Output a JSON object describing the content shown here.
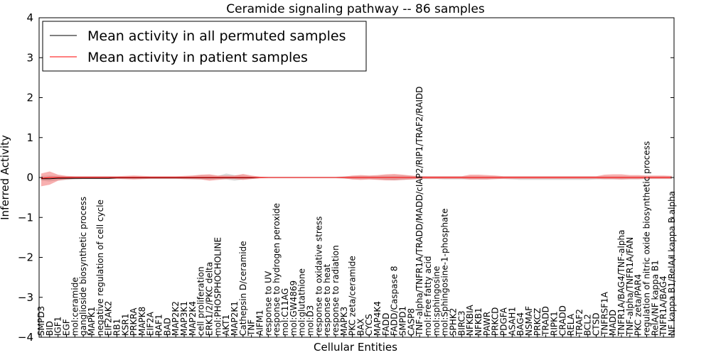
{
  "chart_data": {
    "type": "line",
    "title": "Ceramide signaling pathway -- 86 samples",
    "xlabel": "Cellular Entities",
    "ylabel": "Inferred Activity",
    "ylim": [
      -4,
      4
    ],
    "yticks": [
      "4",
      "3",
      "2",
      "1",
      "0",
      "−1",
      "−2",
      "−3",
      "−4"
    ],
    "grid": false,
    "legend_position": "top-left",
    "categories": [
      "SMPD3",
      "BID",
      "IGF1",
      "EGF",
      "mol:ceramide",
      "ganglioside biosynthetic process",
      "MAPK1",
      "negative regulation of cell cycle",
      "EIF2AK2",
      "RB1",
      "KSR1",
      "PRKRA",
      "MAPK8",
      "EIF2A",
      "RAF1",
      "BAD",
      "MAP2K2",
      "MAP3K1",
      "MAP2K4",
      "cell proliferation",
      "ERK1/2/PKC delta",
      "mol:PHOSPHOCHOLINE",
      "AKT1",
      "MAP2K1",
      "Cathepsin D/ceramide",
      "TNF",
      "AIFM1",
      "response to UV",
      "response to hydrogen peroxide",
      "mol:C11AG",
      "mol:GW4869",
      "mol:glutathione",
      "mol:D3",
      "response to oxidative stress",
      "response to heat",
      "response to radiation",
      "MAPK3",
      "PKC zeta/ceramide",
      "BAX",
      "CYCS",
      "MAP4K4",
      "FADD",
      "FADD/Caspase 8",
      "SMPD1",
      "CASP8",
      "TNF-alpha/TNFR1A/TRADD/MADD/cIAP2/RIP1/TRAF2/RAIDD",
      "mol:Free fatty acid",
      "mol:sphingosine",
      "mol:Sphingosine-1-phosphate",
      "SPHK2",
      "BIRC3",
      "NFKBIA",
      "NFKB1",
      "PAWR",
      "PRKCD",
      "PDGFA",
      "ASAH1",
      "BAG4",
      "NSMAF",
      "PRKCZ",
      "TRADD",
      "RIPK1",
      "CRADD",
      "RELA",
      "TRAF2",
      "BCL2",
      "CTSD",
      "TNFRSF1A",
      "MADD",
      "TNFR1A/BAG4/TNF-alpha",
      "TNF-alpha/TNFR1A/FAN",
      "PKC zeta/PAR4",
      "regulation of nitric oxide biosynthetic process",
      "RelA/NF kappa B1",
      "TNFR1A/BAG4",
      "NF kappa B1/RelA/I kappa B alpha"
    ],
    "series": [
      {
        "name": "Mean activity in all permuted samples",
        "color": "#000000",
        "values": [
          -0.03,
          -0.03,
          -0.02,
          -0.02,
          -0.02,
          -0.02,
          -0.02,
          -0.02,
          -0.02,
          -0.01,
          -0.01,
          -0.01,
          -0.01,
          -0.01,
          -0.01,
          -0.01,
          -0.01,
          -0.01,
          -0.01,
          -0.01,
          -0.01,
          -0.01,
          -0.01,
          -0.01,
          -0.01,
          -0.01,
          0,
          0,
          0,
          0,
          0,
          0,
          0,
          0,
          0,
          0,
          0,
          0,
          0,
          0,
          0,
          0,
          0,
          0,
          0,
          0,
          0,
          0,
          0,
          0,
          0,
          0,
          0,
          0,
          0,
          0,
          0,
          0,
          0,
          0,
          0,
          0,
          0,
          0,
          0,
          0,
          0,
          0,
          0,
          0,
          0,
          0,
          0,
          0,
          0,
          0
        ],
        "band_lower": [
          -0.08,
          -0.1,
          -0.07,
          -0.06,
          -0.05,
          -0.04,
          -0.04,
          -0.04,
          -0.04,
          -0.04,
          -0.04,
          -0.04,
          -0.04,
          -0.04,
          -0.04,
          -0.04,
          -0.04,
          -0.04,
          -0.05,
          -0.05,
          -0.05,
          -0.04,
          -0.05,
          -0.08,
          -0.05,
          -0.03,
          -0.02,
          -0.02,
          -0.02,
          -0.02,
          -0.02,
          -0.02,
          -0.02,
          -0.02,
          -0.02,
          -0.02,
          -0.03,
          -0.04,
          -0.04,
          -0.04,
          -0.05,
          -0.06,
          -0.07,
          -0.06,
          -0.05,
          -0.04,
          -0.04,
          -0.04,
          -0.05,
          -0.05,
          -0.05,
          -0.05,
          -0.05,
          -0.05,
          -0.04,
          -0.04,
          -0.05,
          -0.06,
          -0.06,
          -0.06,
          -0.06,
          -0.06,
          -0.06,
          -0.06,
          -0.06,
          -0.06,
          -0.05,
          -0.05,
          -0.05,
          -0.05,
          -0.05,
          -0.05,
          -0.04,
          -0.04,
          -0.04,
          -0.04
        ],
        "band_upper": [
          0.04,
          0.05,
          0.04,
          0.03,
          0.03,
          0.03,
          0.03,
          0.03,
          0.03,
          0.03,
          0.03,
          0.03,
          0.03,
          0.03,
          0.03,
          0.03,
          0.03,
          0.03,
          0.04,
          0.05,
          0.05,
          0.04,
          0.1,
          0.06,
          0.05,
          0.03,
          0.02,
          0.02,
          0.02,
          0.02,
          0.02,
          0.02,
          0.02,
          0.02,
          0.02,
          0.02,
          0.03,
          0.03,
          0.04,
          0.04,
          0.04,
          0.05,
          0.05,
          0.05,
          0.04,
          0.04,
          0.03,
          0.03,
          0.03,
          0.03,
          0.03,
          0.03,
          0.03,
          0.03,
          0.03,
          0.03,
          0.03,
          0.03,
          0.03,
          0.03,
          0.03,
          0.03,
          0.03,
          0.03,
          0.03,
          0.03,
          0.03,
          0.03,
          0.03,
          0.03,
          0.03,
          0.03,
          0.03,
          0.03,
          0.03,
          0.03
        ]
      },
      {
        "name": "Mean activity in patient samples",
        "color": "#ff0000",
        "values": [
          -0.02,
          0.0,
          0.0,
          0.0,
          0.0,
          0.0,
          0.0,
          0.0,
          0.0,
          0.0,
          0.0,
          0.0,
          0.0,
          0.0,
          0.0,
          0.0,
          0.0,
          0.0,
          0.0,
          0.0,
          0.0,
          0.0,
          0.0,
          0.0,
          0.0,
          0.0,
          0.0,
          0.0,
          0.0,
          0.0,
          0.0,
          0.0,
          0.0,
          0.0,
          0.0,
          0.0,
          0.0,
          0.0,
          0.0,
          0.0,
          0.0,
          0.0,
          0.0,
          0.0,
          0.0,
          0.0,
          0.0,
          0.0,
          0.0,
          0.0,
          0.0,
          0.0,
          0.0,
          0.0,
          0.0,
          0.0,
          0.0,
          0.0,
          0.0,
          0.0,
          0.0,
          0.0,
          0.0,
          0.0,
          0.0,
          0.0,
          0.0,
          0.0,
          0.0,
          0.0,
          0.0,
          0.0,
          0.0,
          0.0,
          0.0,
          0.0
        ],
        "band_lower": [
          -0.22,
          -0.18,
          -0.08,
          -0.05,
          -0.03,
          -0.03,
          -0.03,
          -0.03,
          -0.03,
          -0.03,
          -0.04,
          -0.05,
          -0.04,
          -0.03,
          -0.03,
          -0.03,
          -0.03,
          -0.04,
          -0.04,
          -0.05,
          -0.08,
          -0.06,
          -0.04,
          -0.04,
          -0.06,
          -0.04,
          -0.02,
          -0.01,
          -0.01,
          -0.01,
          -0.01,
          -0.01,
          -0.01,
          -0.01,
          -0.01,
          -0.01,
          -0.02,
          -0.05,
          -0.06,
          -0.05,
          -0.06,
          -0.07,
          -0.07,
          -0.06,
          -0.05,
          -0.03,
          -0.03,
          -0.03,
          -0.03,
          -0.03,
          -0.03,
          -0.05,
          -0.05,
          -0.05,
          -0.04,
          -0.03,
          -0.03,
          -0.03,
          -0.03,
          -0.03,
          -0.03,
          -0.03,
          -0.03,
          -0.03,
          -0.03,
          -0.03,
          -0.03,
          -0.04,
          -0.04,
          -0.05,
          -0.04,
          -0.04,
          -0.03,
          -0.03,
          -0.03,
          -0.03
        ],
        "band_upper": [
          0.1,
          0.15,
          0.07,
          0.04,
          0.03,
          0.03,
          0.03,
          0.03,
          0.03,
          0.03,
          0.04,
          0.05,
          0.04,
          0.03,
          0.03,
          0.03,
          0.03,
          0.04,
          0.05,
          0.07,
          0.08,
          0.05,
          0.05,
          0.05,
          0.09,
          0.05,
          0.02,
          0.01,
          0.01,
          0.01,
          0.01,
          0.01,
          0.01,
          0.01,
          0.01,
          0.01,
          0.02,
          0.05,
          0.06,
          0.05,
          0.06,
          0.08,
          0.09,
          0.07,
          0.05,
          0.03,
          0.03,
          0.03,
          0.03,
          0.03,
          0.03,
          0.07,
          0.07,
          0.06,
          0.05,
          0.03,
          0.03,
          0.03,
          0.03,
          0.03,
          0.03,
          0.03,
          0.03,
          0.03,
          0.03,
          0.03,
          0.03,
          0.07,
          0.08,
          0.08,
          0.06,
          0.06,
          0.05,
          0.05,
          0.05,
          0.04
        ]
      }
    ]
  }
}
